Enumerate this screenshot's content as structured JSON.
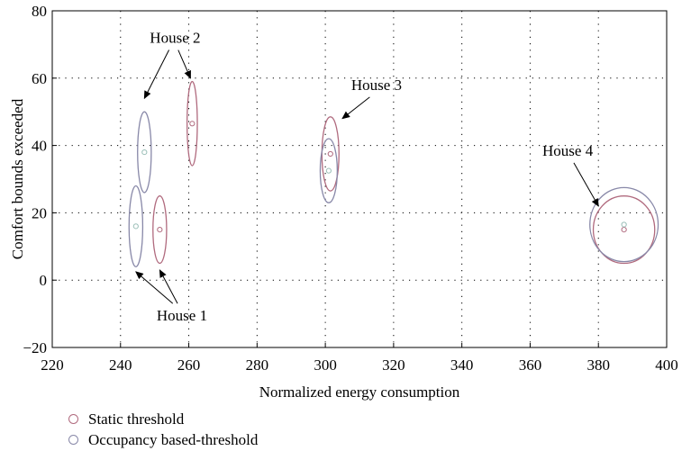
{
  "chart_data": {
    "type": "scatter",
    "title": "",
    "xlabel": "Normalized energy consumption",
    "ylabel": "Comfort bounds exceeded",
    "xlim": [
      220,
      400
    ],
    "ylim": [
      -20,
      80
    ],
    "xticks": [
      220,
      240,
      260,
      280,
      300,
      320,
      340,
      360,
      380,
      400
    ],
    "yticks": [
      -20,
      0,
      20,
      40,
      60,
      80
    ],
    "xtick_labels": [
      "220",
      "240",
      "260",
      "280",
      "300",
      "320",
      "340",
      "360",
      "380",
      "400"
    ],
    "ytick_labels": [
      "−20",
      "0",
      "20",
      "40",
      "60",
      "80"
    ],
    "grid": true,
    "legend_position": "bottom-left",
    "series": [
      {
        "name": "Static threshold",
        "color": "#b06a7e",
        "points": [
          {
            "x": 251.5,
            "y": 15,
            "rx": 2,
            "ry": 10
          },
          {
            "x": 261.0,
            "y": 46.5,
            "rx": 1.5,
            "ry": 12.5
          },
          {
            "x": 301.5,
            "y": 37.5,
            "rx": 2.5,
            "ry": 11
          },
          {
            "x": 387.5,
            "y": 15,
            "rx": 9,
            "ry": 10
          }
        ]
      },
      {
        "name": "Occupancy based-threshold",
        "color": "#8888a8",
        "points": [
          {
            "x": 244.5,
            "y": 16,
            "rx": 2,
            "ry": 12
          },
          {
            "x": 247.0,
            "y": 38,
            "rx": 2,
            "ry": 12
          },
          {
            "x": 301.0,
            "y": 32.5,
            "rx": 2.5,
            "ry": 9.5
          },
          {
            "x": 387.5,
            "y": 16.5,
            "rx": 10,
            "ry": 11
          }
        ]
      }
    ],
    "point_color": "#9bbfb8",
    "annotations": [
      {
        "text": "House 1",
        "x": 258,
        "y": -12,
        "arrows_to": [
          [
            244.5,
            2.5
          ],
          [
            251.5,
            3
          ]
        ]
      },
      {
        "text": "House 2",
        "x": 256,
        "y": 70.5,
        "arrows_to": [
          [
            247,
            54
          ],
          [
            260.5,
            60
          ]
        ]
      },
      {
        "text": "House 3",
        "x": 315,
        "y": 56.5,
        "arrows_to": [
          [
            305,
            48
          ]
        ]
      },
      {
        "text": "House 4",
        "x": 371,
        "y": 37,
        "arrows_to": [
          [
            380,
            22
          ]
        ]
      }
    ]
  }
}
